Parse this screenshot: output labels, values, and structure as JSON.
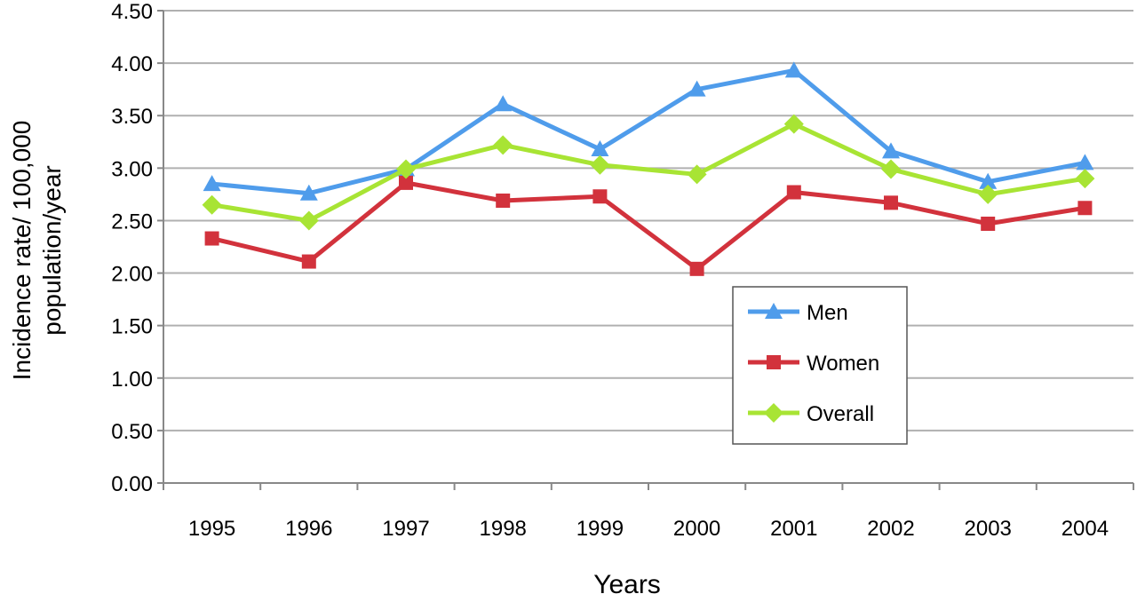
{
  "chart_data": {
    "type": "line",
    "title": "",
    "xlabel": "Years",
    "ylabel_lines": [
      "Incidence rate/ 100,000",
      "population/year"
    ],
    "ylim": [
      0,
      4.5
    ],
    "ytick_step": 0.5,
    "yticks": [
      "0.00",
      "0.50",
      "1.00",
      "1.50",
      "2.00",
      "2.50",
      "3.00",
      "3.50",
      "4.00",
      "4.50"
    ],
    "grid": true,
    "legend_position": "center-right",
    "categories": [
      "1995",
      "1996",
      "1997",
      "1998",
      "1999",
      "2000",
      "2001",
      "2002",
      "2003",
      "2004"
    ],
    "series": [
      {
        "name": "Men",
        "marker": "triangle",
        "color": "#4f9ceb",
        "values": [
          2.85,
          2.76,
          2.99,
          3.61,
          3.18,
          3.75,
          3.93,
          3.16,
          2.87,
          3.05
        ]
      },
      {
        "name": "Women",
        "marker": "square",
        "color": "#d2323c",
        "values": [
          2.33,
          2.11,
          2.86,
          2.69,
          2.73,
          2.04,
          2.77,
          2.67,
          2.47,
          2.62
        ]
      },
      {
        "name": "Overall",
        "marker": "diamond",
        "color": "#a8e434",
        "values": [
          2.65,
          2.5,
          2.99,
          3.22,
          3.03,
          2.94,
          3.42,
          2.99,
          2.75,
          2.9
        ]
      }
    ]
  }
}
